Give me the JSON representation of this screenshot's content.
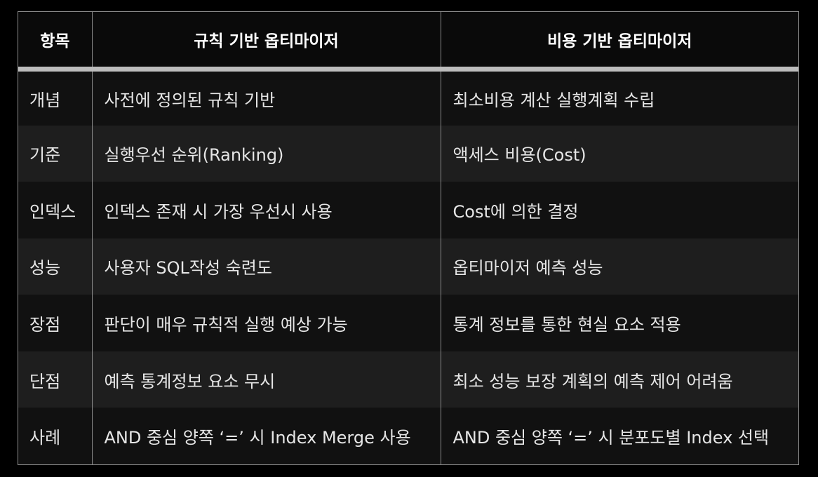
{
  "header": {
    "col1": "항목",
    "col2": "규칙 기반 옵티마이저",
    "col3": "비용 기반 옵티마이저"
  },
  "rows": [
    {
      "item": "개념",
      "rule": "사전에 정의된 규칙 기반",
      "cost": "최소비용 계산 실행계획 수립"
    },
    {
      "item": "기준",
      "rule": "실행우선 순위(Ranking)",
      "cost": "액세스 비용(Cost)"
    },
    {
      "item": "인덱스",
      "rule": "인덱스 존재 시 가장 우선시 사용",
      "cost": "Cost에 의한 결정"
    },
    {
      "item": "성능",
      "rule": "사용자 SQL작성 숙련도",
      "cost": "옵티마이저 예측 성능"
    },
    {
      "item": "장점",
      "rule": "판단이 매우 규칙적 실행 예상 가능",
      "cost": "통계 정보를 통한 현실 요소 적용"
    },
    {
      "item": "단점",
      "rule": "예측 통계정보 요소 무시",
      "cost": "최소 성능 보장 계획의 예측 제어 어려움"
    },
    {
      "item": "사례",
      "rule": "AND 중심 양쪽 ‘=’ 시 Index Merge 사용",
      "cost": "AND 중심 양쪽 ‘=’ 시 분포도별 Index 선택"
    }
  ]
}
